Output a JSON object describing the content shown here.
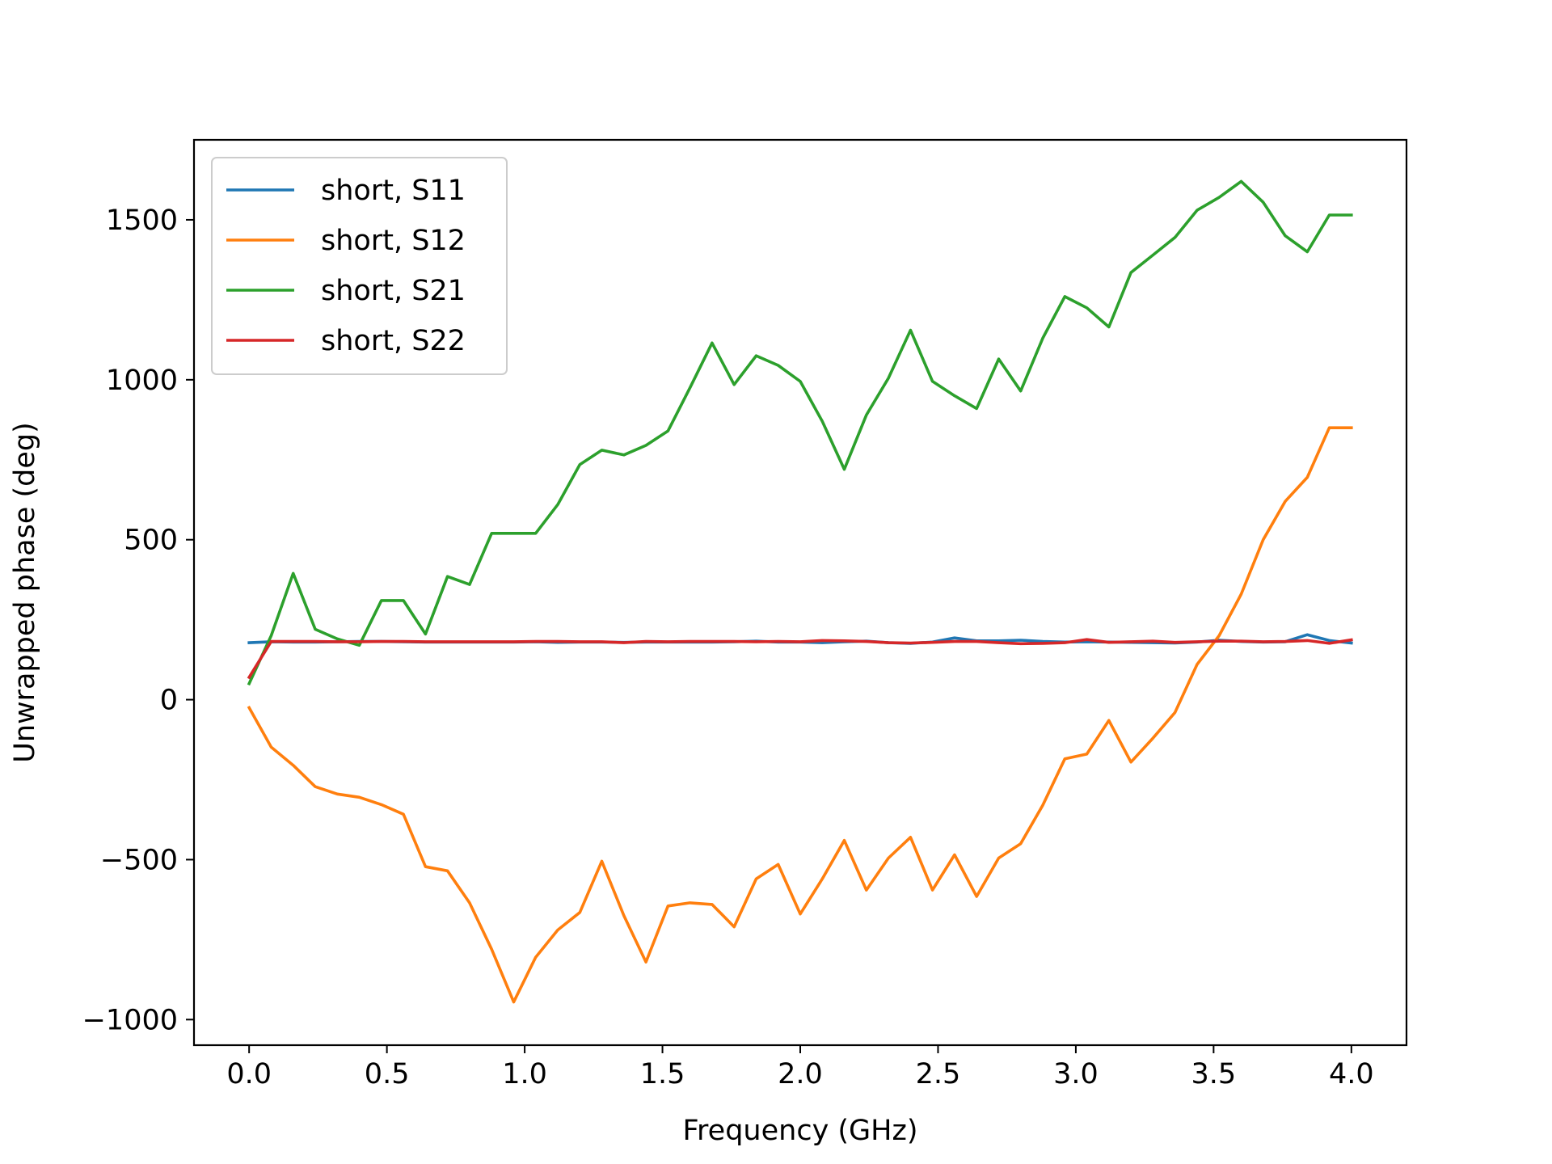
{
  "chart_data": {
    "type": "line",
    "title": "",
    "xlabel": "Frequency (GHz)",
    "ylabel": "Unwrapped phase (deg)",
    "xlim": [
      -0.2,
      4.2
    ],
    "ylim": [
      -1080,
      1750
    ],
    "xticks": [
      0.0,
      0.5,
      1.0,
      1.5,
      2.0,
      2.5,
      3.0,
      3.5,
      4.0
    ],
    "xtick_labels": [
      "0.0",
      "0.5",
      "1.0",
      "1.5",
      "2.0",
      "2.5",
      "3.0",
      "3.5",
      "4.0"
    ],
    "yticks": [
      -1000,
      -500,
      0,
      500,
      1000,
      1500
    ],
    "ytick_labels": [
      "−1000",
      "−500",
      "0",
      "500",
      "1000",
      "1500"
    ],
    "grid": false,
    "legend_position": "top-left",
    "x": [
      0.0,
      0.08,
      0.16,
      0.24,
      0.32,
      0.4,
      0.48,
      0.56,
      0.64,
      0.72,
      0.8,
      0.88,
      0.96,
      1.04,
      1.12,
      1.2,
      1.28,
      1.36,
      1.44,
      1.52,
      1.6,
      1.68,
      1.76,
      1.84,
      1.92,
      2.0,
      2.08,
      2.16,
      2.24,
      2.32,
      2.4,
      2.48,
      2.56,
      2.64,
      2.72,
      2.8,
      2.88,
      2.96,
      3.04,
      3.12,
      3.2,
      3.28,
      3.36,
      3.44,
      3.52,
      3.6,
      3.68,
      3.76,
      3.84,
      3.92,
      4.0
    ],
    "series": [
      {
        "name": "short, S11",
        "color": "#1f77b4",
        "values": [
          178,
          181,
          180,
          180,
          181,
          182,
          182,
          181,
          180,
          180,
          180,
          180,
          180,
          181,
          179,
          180,
          180,
          179,
          180,
          180,
          180,
          180,
          181,
          183,
          180,
          180,
          178,
          181,
          183,
          178,
          176,
          180,
          193,
          184,
          184,
          186,
          182,
          180,
          181,
          180,
          179,
          178,
          177,
          180,
          186,
          182,
          180,
          181,
          203,
          185,
          177
        ]
      },
      {
        "name": "short, S12",
        "color": "#ff7f0e",
        "values": [
          -25,
          -148,
          -205,
          -272,
          -295,
          -305,
          -328,
          -358,
          -522,
          -535,
          -635,
          -780,
          -945,
          -805,
          -720,
          -665,
          -505,
          -675,
          -820,
          -645,
          -635,
          -640,
          -710,
          -560,
          -515,
          -670,
          -560,
          -440,
          -595,
          -495,
          -430,
          -595,
          -485,
          -615,
          -495,
          -450,
          -330,
          -185,
          -170,
          -65,
          -195,
          -120,
          -40,
          110,
          200,
          330,
          500,
          620,
          695,
          850,
          850
        ]
      },
      {
        "name": "short, S21",
        "color": "#2ca02c",
        "values": [
          50,
          200,
          395,
          220,
          190,
          170,
          310,
          310,
          205,
          385,
          360,
          520,
          520,
          520,
          610,
          735,
          780,
          765,
          795,
          840,
          975,
          1115,
          985,
          1075,
          1045,
          995,
          870,
          720,
          890,
          1005,
          1155,
          995,
          950,
          910,
          1065,
          965,
          1130,
          1260,
          1225,
          1165,
          1335,
          1390,
          1445,
          1530,
          1570,
          1620,
          1555,
          1450,
          1400,
          1515,
          1515
        ]
      },
      {
        "name": "short, S22",
        "color": "#d62728",
        "values": [
          70,
          182,
          182,
          182,
          181,
          181,
          182,
          182,
          181,
          181,
          181,
          181,
          181,
          182,
          182,
          181,
          181,
          178,
          182,
          181,
          182,
          182,
          182,
          181,
          182,
          181,
          185,
          184,
          182,
          178,
          177,
          179,
          182,
          182,
          178,
          175,
          176,
          178,
          188,
          179,
          181,
          183,
          179,
          181,
          183,
          183,
          181,
          182,
          185,
          176,
          187
        ]
      }
    ]
  }
}
